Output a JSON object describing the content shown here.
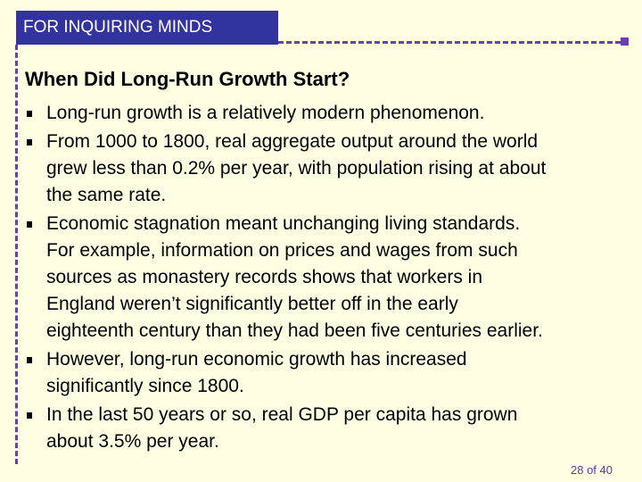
{
  "header": {
    "label": "FOR INQUIRING MINDS"
  },
  "title": "When Did Long-Run Growth Start?",
  "bullets": [
    [
      "Long-run growth is a relatively modern phenomenon."
    ],
    [
      "From 1000 to 1800, real aggregate output around the world",
      "grew less than 0.2% per year, with population rising at about",
      "the same rate."
    ],
    [
      "Economic stagnation meant unchanging living standards.",
      "For example, information on prices and wages from such",
      "sources as monastery records shows that workers in",
      "England weren’t significantly better off in the early",
      "eighteenth century than they had been five centuries earlier."
    ],
    [
      "However, long-run economic growth has increased",
      "significantly since 1800."
    ],
    [
      "In the last 50 years or so, real GDP per capita has grown",
      "about 3.5% per year."
    ]
  ],
  "footer": {
    "page": "28 of 40"
  }
}
